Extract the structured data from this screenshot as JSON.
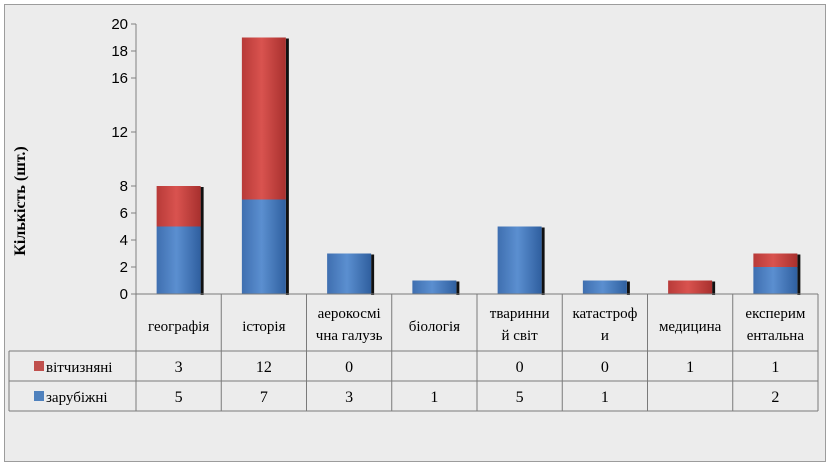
{
  "chart_data": {
    "type": "bar",
    "stacked": true,
    "ylabel": "Кількість (шт.)",
    "ylim": [
      0,
      20
    ],
    "yticks": [
      0,
      2,
      4,
      6,
      8,
      12,
      16,
      18,
      20
    ],
    "categories": [
      [
        "географія"
      ],
      [
        "історія"
      ],
      [
        "аерокосмі",
        "чна галузь"
      ],
      [
        "біологія"
      ],
      [
        "тваринни",
        "й світ"
      ],
      [
        "катастроф",
        "и"
      ],
      [
        "медицина"
      ],
      [
        "експерим",
        "ентальна"
      ]
    ],
    "series": [
      {
        "name": "зарубіжні",
        "color": "#4f81bd",
        "values": [
          5,
          7,
          3,
          1,
          5,
          1,
          null,
          2
        ]
      },
      {
        "name": "вітчизняні",
        "color": "#c0504d",
        "values": [
          3,
          12,
          0,
          null,
          0,
          0,
          1,
          1
        ]
      }
    ],
    "table": {
      "rows": [
        {
          "label": "вітчизняні",
          "cells": [
            "3",
            "12",
            "0",
            "",
            "0",
            "0",
            "1",
            "1"
          ]
        },
        {
          "label": "зарубіжні",
          "cells": [
            "5",
            "7",
            "3",
            "1",
            "5",
            "1",
            "",
            "2"
          ]
        }
      ]
    },
    "grid": false,
    "legend": "data-table"
  }
}
